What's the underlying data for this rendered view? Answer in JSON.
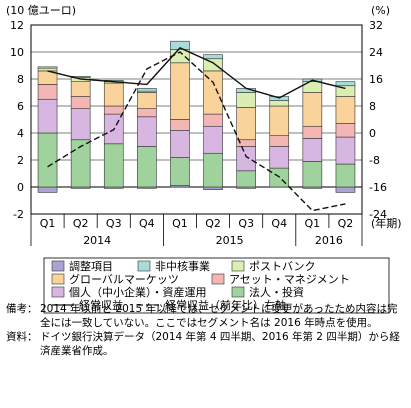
{
  "chart_data": {
    "type": "bar",
    "y_left_unit": "(10 億ユーロ)",
    "y_right_unit": "(%)",
    "x_unit": "(年期)",
    "ylim_left": [
      -2,
      12
    ],
    "ylim_right": [
      -24,
      32
    ],
    "yticks_left": [
      "-2",
      "0",
      "2",
      "4",
      "6",
      "8",
      "10",
      "12"
    ],
    "yticks_right": [
      "-24",
      "-16",
      "-8",
      "0",
      "8",
      "16",
      "24",
      "32"
    ],
    "categories": [
      "Q1",
      "Q2",
      "Q3",
      "Q4",
      "Q1",
      "Q2",
      "Q3",
      "Q4",
      "Q1",
      "Q2"
    ],
    "years": [
      {
        "label": "2014",
        "start": 0,
        "end": 3
      },
      {
        "label": "2015",
        "start": 4,
        "end": 7
      },
      {
        "label": "2016",
        "start": 8,
        "end": 9
      }
    ],
    "series": [
      {
        "name": "調整項目",
        "color": "#a9a4d4",
        "values": [
          -0.4,
          -0.1,
          -0.1,
          -0.1,
          0.1,
          -0.2,
          -0.1,
          0.0,
          -0.1,
          -0.4
        ]
      },
      {
        "name": "法人・投資",
        "color": "#9fd29c",
        "values": [
          4.0,
          3.5,
          3.2,
          3.0,
          2.1,
          2.5,
          1.2,
          1.4,
          1.9,
          1.7
        ]
      },
      {
        "name": "個人（中小企業）・資産運用",
        "color": "#d7b7e2",
        "values": [
          2.5,
          2.3,
          2.2,
          2.2,
          2.0,
          2.0,
          1.8,
          1.6,
          1.7,
          2.0
        ]
      },
      {
        "name": "アセット・マネジメント",
        "color": "#f4b6b4",
        "values": [
          1.1,
          0.9,
          0.6,
          0.6,
          0.8,
          0.9,
          0.5,
          0.8,
          0.9,
          1.0
        ]
      },
      {
        "name": "グローバルマーケッツ",
        "color": "#f9d39a",
        "values": [
          1.0,
          1.1,
          1.7,
          1.2,
          4.2,
          3.2,
          2.4,
          2.2,
          2.5,
          2.0
        ]
      },
      {
        "name": "ポストバンク",
        "color": "#dbeeb1",
        "values": [
          0.2,
          0.3,
          0.1,
          0.1,
          1.0,
          0.9,
          1.1,
          0.4,
          0.8,
          0.8
        ]
      },
      {
        "name": "非中核事業",
        "color": "#a8dcdc",
        "values": [
          0.1,
          0.1,
          0.1,
          0.2,
          0.6,
          0.3,
          0.3,
          0.3,
          0.2,
          0.3
        ]
      }
    ],
    "lines": [
      {
        "name": "経常収益",
        "axis": "left",
        "dash": "none",
        "values": [
          8.6,
          8.0,
          7.8,
          7.6,
          10.3,
          9.2,
          7.3,
          6.6,
          7.9,
          7.3
        ]
      },
      {
        "name": "経常収益（前年比）右軸",
        "axis": "right",
        "dash": "6,3",
        "values": [
          -10.0,
          -4.0,
          1.0,
          19.0,
          24.0,
          15.0,
          -7.0,
          -13.0,
          -23.0,
          -21.0
        ]
      }
    ]
  },
  "legend": {
    "items": [
      {
        "label": "調整項目",
        "color": "#a9a4d4",
        "kind": "box"
      },
      {
        "label": "非中核事業",
        "color": "#a8dcdc",
        "kind": "box"
      },
      {
        "label": "ポストバンク",
        "color": "#dbeeb1",
        "kind": "box"
      },
      {
        "label": "グローバルマーケッツ",
        "color": "#f9d39a",
        "kind": "box"
      },
      {
        "label": "アセット・マネジメント",
        "color": "#f4b6b4",
        "kind": "box"
      },
      {
        "label": "個人（中小企業）・資産運用",
        "color": "#d7b7e2",
        "kind": "box"
      },
      {
        "label": "法人・投資",
        "color": "#9fd29c",
        "kind": "box"
      },
      {
        "label": "経常収益",
        "kind": "solid"
      },
      {
        "label": "経常収益（前年比）右軸",
        "kind": "dash"
      }
    ]
  },
  "notes": {
    "bikou_label": "備考：",
    "bikou_text": "2014 年以前と 2015 年以降では、セグメントに変更があったため内容は完全には一致していない。ここではセグメント名は 2016 年時点を使用。",
    "shiryou_label": "資料：",
    "shiryou_text": "ドイツ銀行決算データ（2014 年第 4 四半期、2016 年第 2 四半期）から経済産業省作成。"
  }
}
